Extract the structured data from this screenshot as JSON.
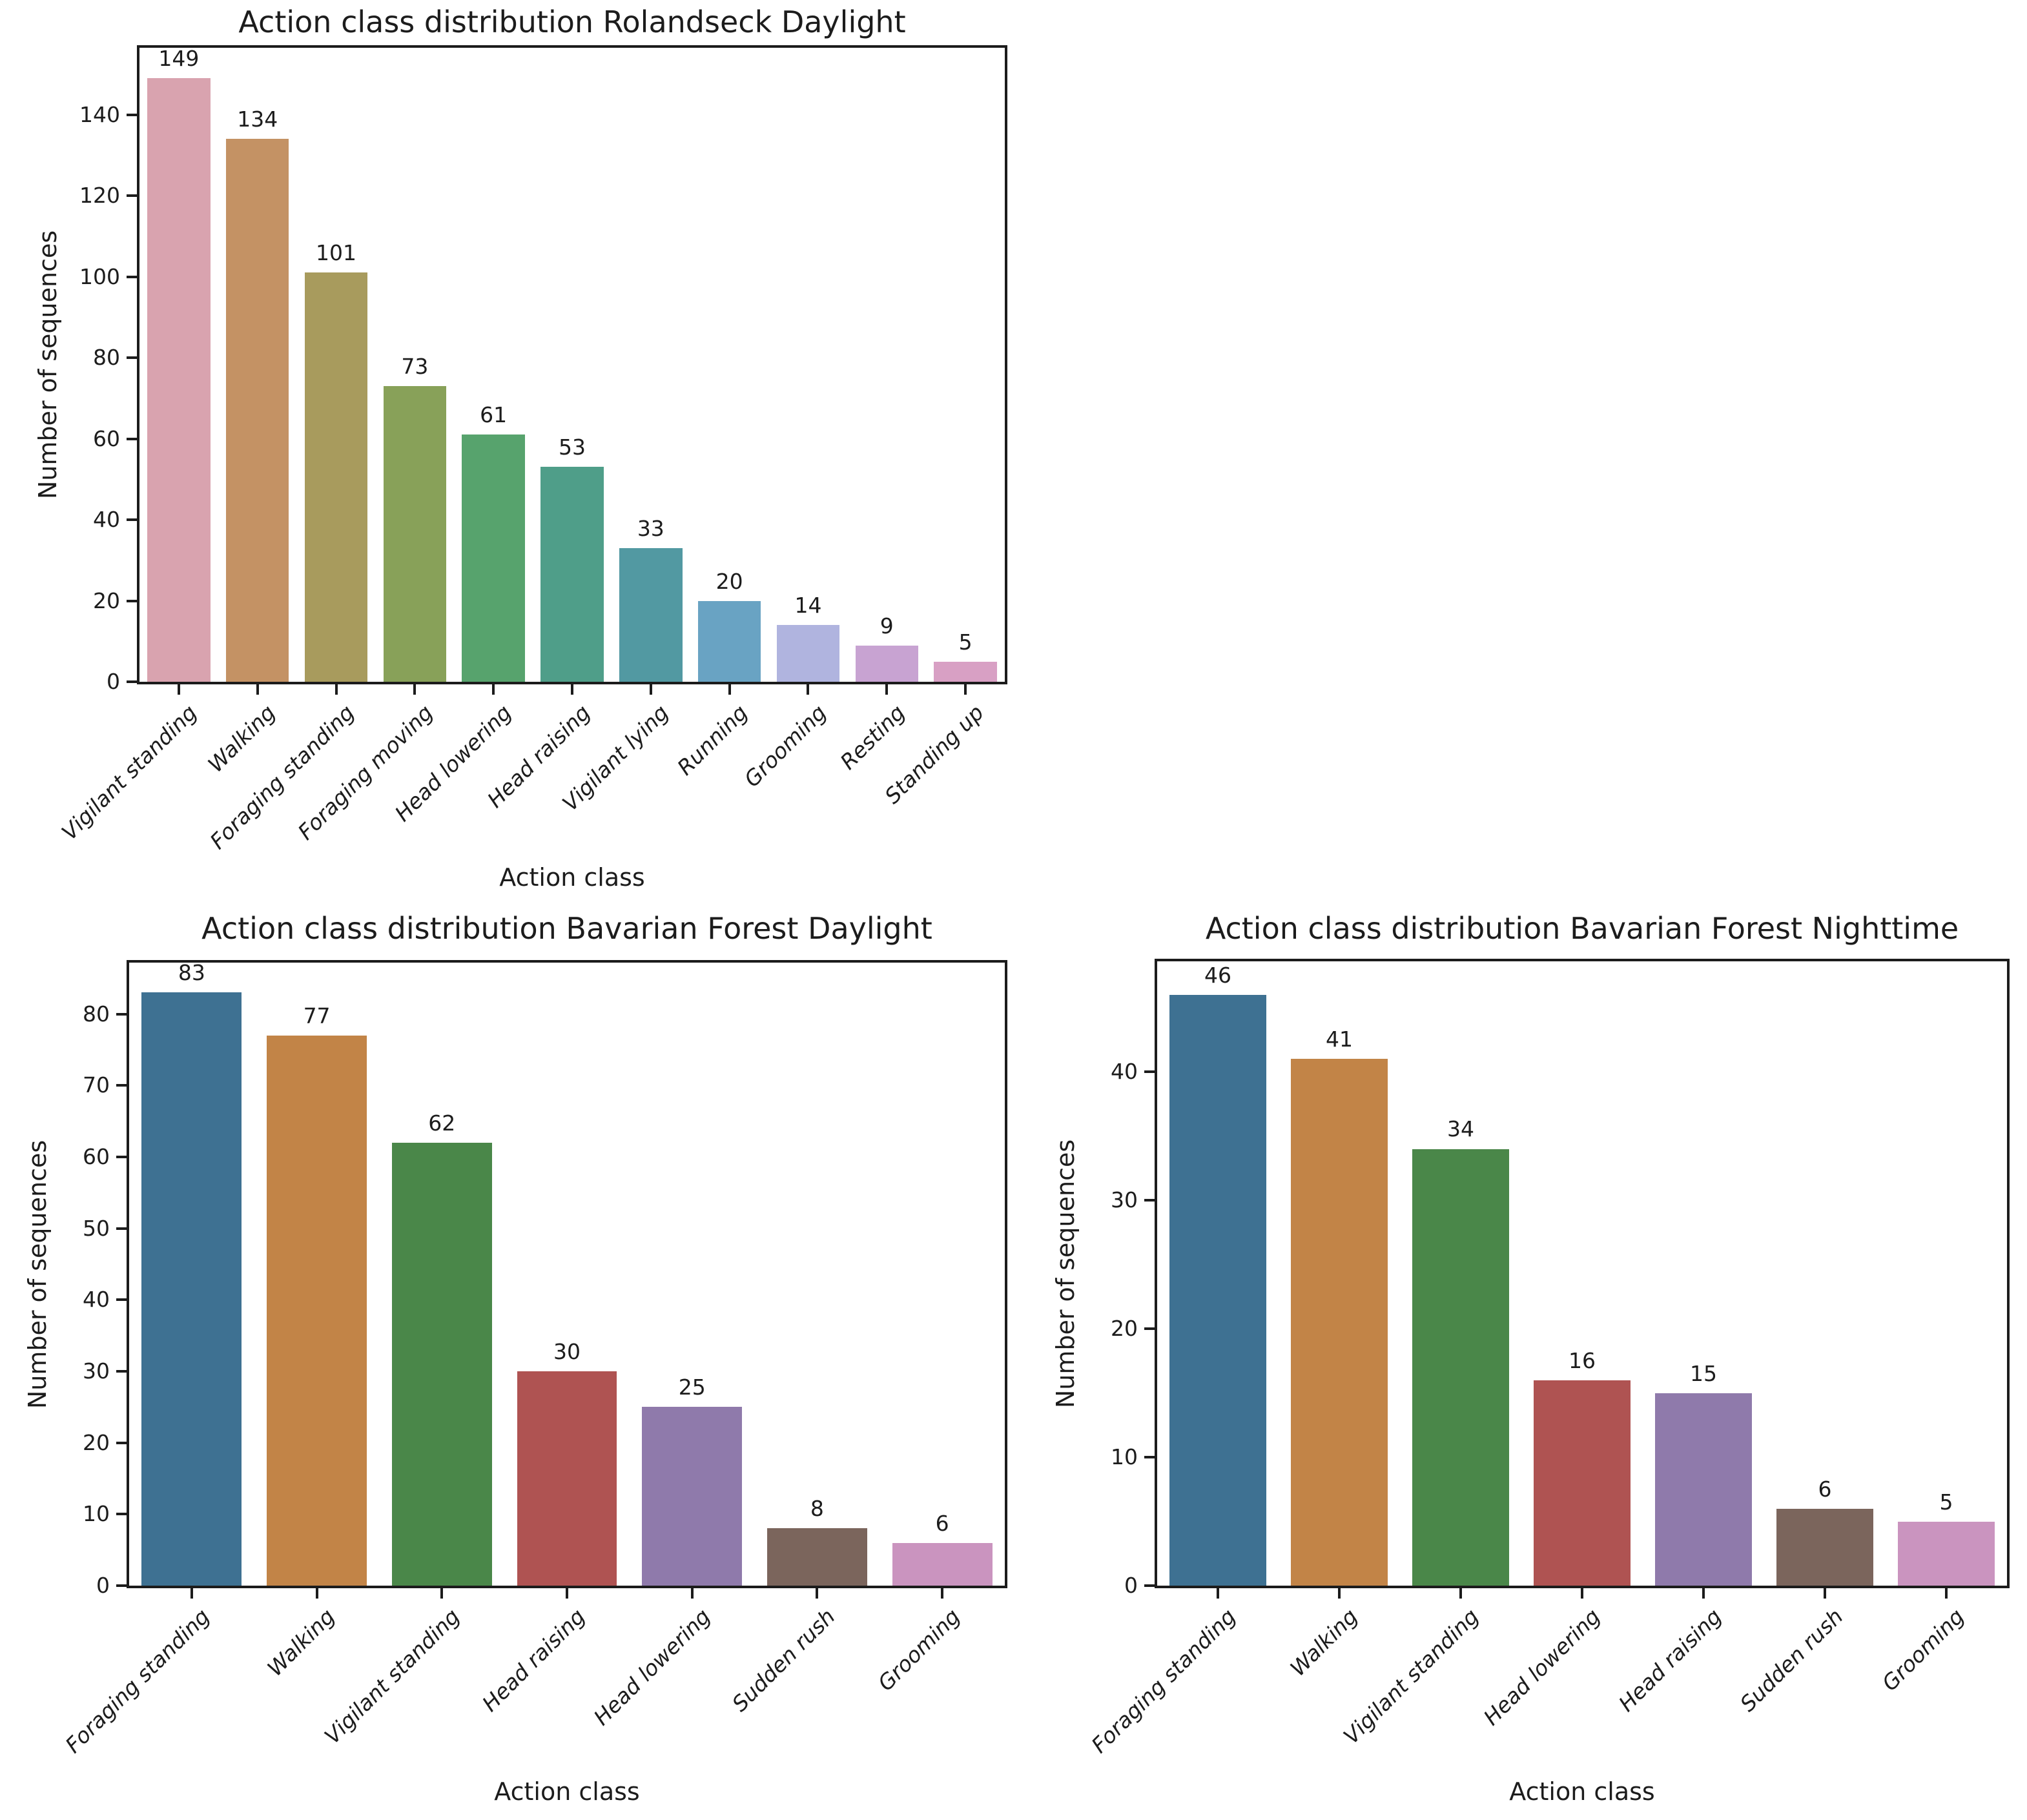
{
  "style": {
    "background": "#ffffff",
    "axis_color": "#1c1c1c",
    "text_color": "#1c1c1c"
  },
  "chart_data": [
    {
      "type": "bar",
      "title": "Action class distribution Rolandseck Daylight",
      "xlabel": "Action class",
      "ylabel": "Number of sequences",
      "categories": [
        "Vigilant standing",
        "Walking",
        "Foraging standing",
        "Foraging moving",
        "Head lowering",
        "Head raising",
        "Vigilant lying",
        "Running",
        "Grooming",
        "Resting",
        "Standing up"
      ],
      "values": [
        149,
        134,
        101,
        73,
        61,
        53,
        33,
        20,
        14,
        9,
        5
      ],
      "bar_colors": [
        "#d9a3af",
        "#c49264",
        "#a89b5d",
        "#88a159",
        "#57a36d",
        "#4f9e89",
        "#5299a2",
        "#69a3c3",
        "#b0b4df",
        "#c8a3d2",
        "#d8a0c4"
      ],
      "yticks": [
        0,
        20,
        40,
        60,
        80,
        100,
        120,
        140
      ],
      "ylim": [
        0,
        156.5
      ],
      "grid": false,
      "legend": false,
      "bar_value_labels": true
    },
    {
      "type": "bar",
      "title": "Action class distribution Bavarian Forest Daylight",
      "xlabel": "Action class",
      "ylabel": "Number of sequences",
      "categories": [
        "Foraging standing",
        "Walking",
        "Vigilant standing",
        "Head raising",
        "Head lowering",
        "Sudden rush",
        "Grooming"
      ],
      "values": [
        83,
        77,
        62,
        30,
        25,
        8,
        6
      ],
      "bar_colors": [
        "#3e7192",
        "#c28447",
        "#4a8749",
        "#af5352",
        "#8f7aab",
        "#7b655c",
        "#ca94bf"
      ],
      "yticks": [
        0,
        10,
        20,
        30,
        40,
        50,
        60,
        70,
        80
      ],
      "ylim": [
        0,
        87.2
      ],
      "grid": false,
      "legend": false,
      "bar_value_labels": true
    },
    {
      "type": "bar",
      "title": "Action class distribution Bavarian Forest Nighttime",
      "xlabel": "Action class",
      "ylabel": "Number of sequences",
      "categories": [
        "Foraging standing",
        "Walking",
        "Vigilant standing",
        "Head lowering",
        "Head raising",
        "Sudden rush",
        "Grooming"
      ],
      "values": [
        46,
        41,
        34,
        16,
        15,
        6,
        5
      ],
      "bar_colors": [
        "#3e7192",
        "#c28447",
        "#4a8749",
        "#af5352",
        "#8f7aab",
        "#7b655c",
        "#ca94bf"
      ],
      "yticks": [
        0,
        10,
        20,
        30,
        40
      ],
      "ylim": [
        0,
        48.6
      ],
      "grid": false,
      "legend": false,
      "bar_value_labels": true
    }
  ]
}
